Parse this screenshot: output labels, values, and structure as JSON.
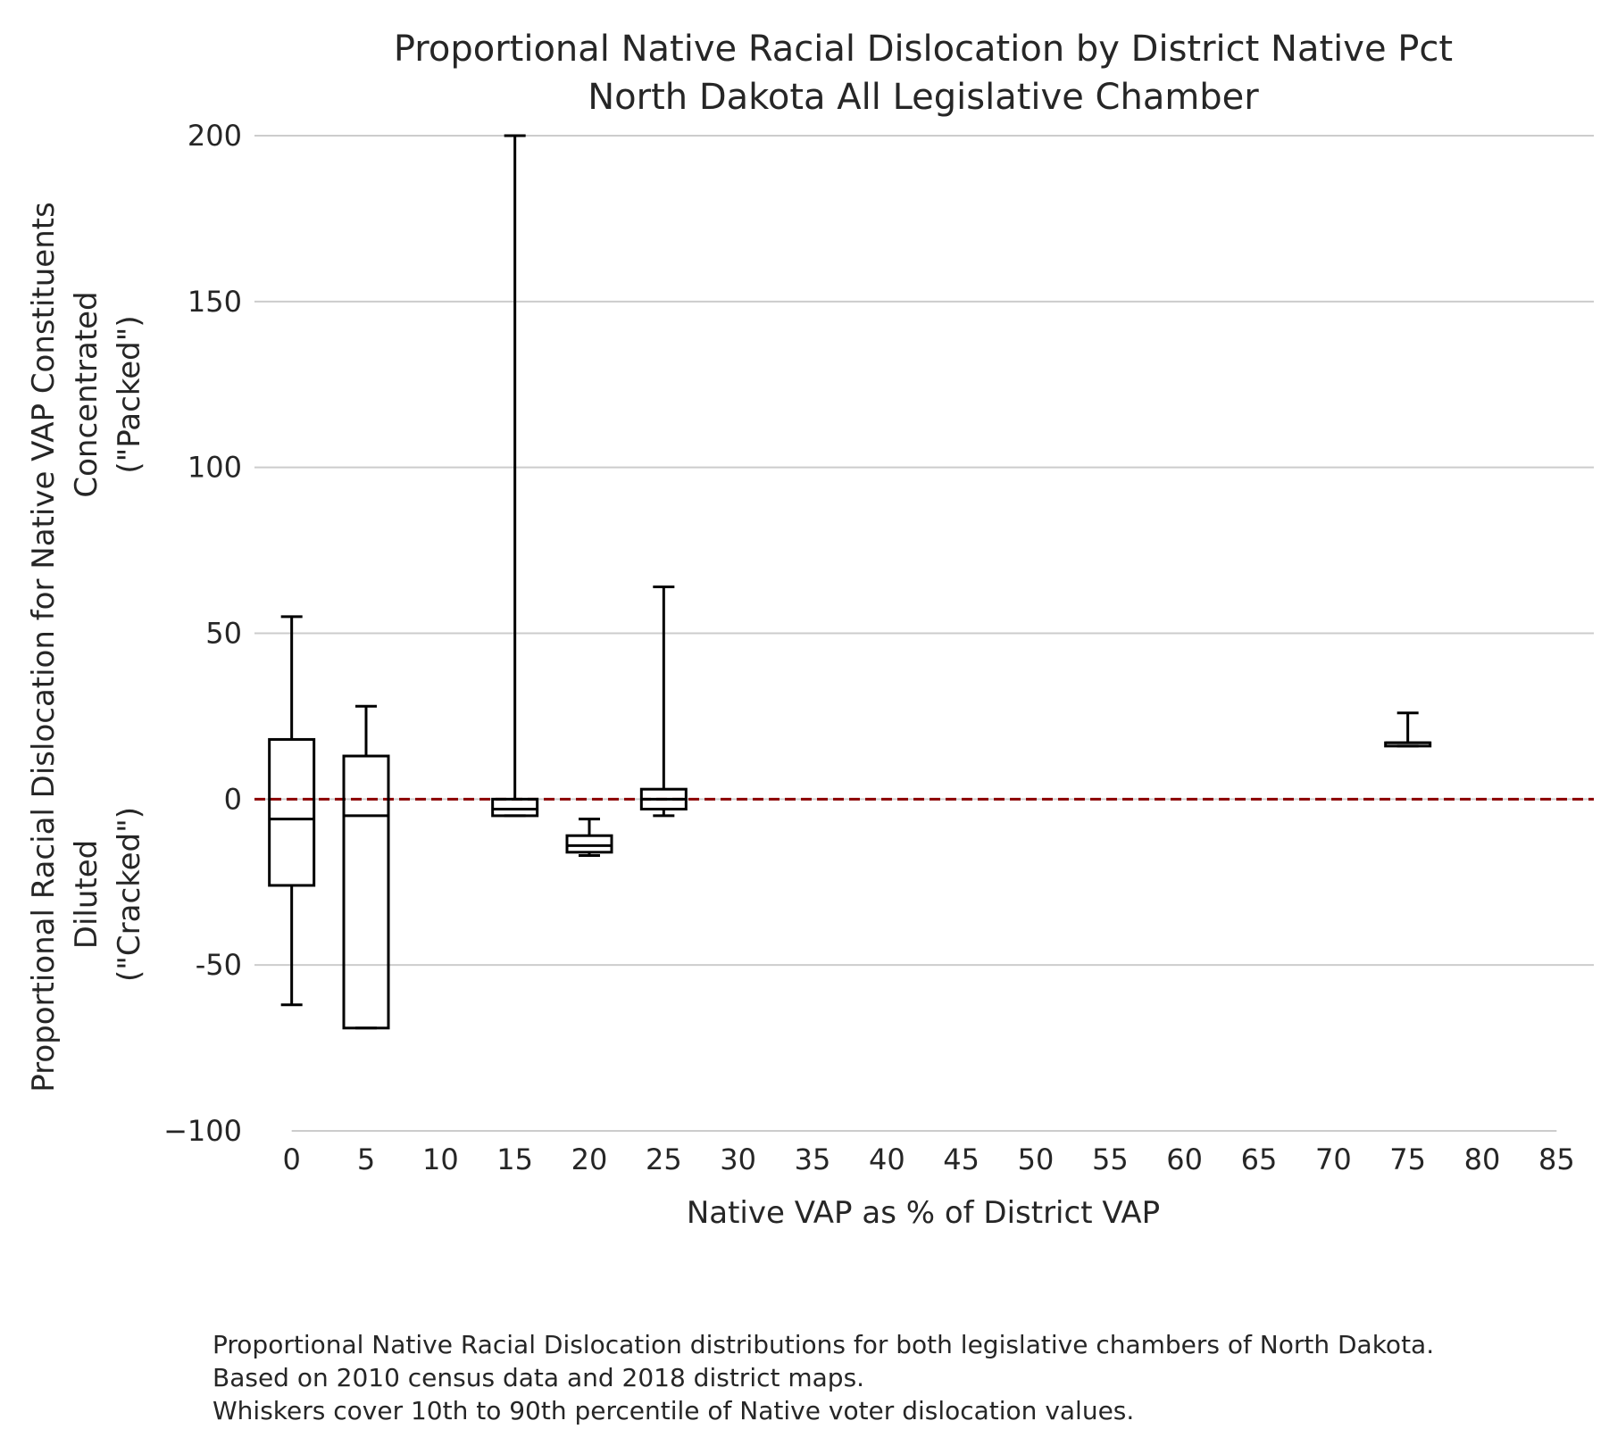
{
  "chart_data": {
    "type": "box",
    "title": "Proportional Native Racial Dislocation by District Native Pct",
    "subtitle": "North Dakota All Legislative Chamber",
    "xlabel": "Native VAP as % of District VAP",
    "ylabel_lines": [
      "Proportional Racial Dislocation for Native VAP Constituents",
      "Concentrated",
      "(\"Packed\")",
      "Diluted",
      "(\"Cracked\")"
    ],
    "x_ticks": [
      "0",
      "5",
      "10",
      "15",
      "20",
      "25",
      "30",
      "35",
      "40",
      "45",
      "50",
      "55",
      "60",
      "65",
      "70",
      "75",
      "80",
      "85"
    ],
    "y_ticks": [
      "200",
      "150",
      "100",
      "50",
      "0",
      "-50",
      "−100"
    ],
    "ylim": [
      -100,
      200
    ],
    "xlim": [
      -2.5,
      87.5
    ],
    "grid": "horizontal",
    "reference_line": {
      "y": 0,
      "color": "#8b0000",
      "style": "dashed"
    },
    "boxes": [
      {
        "x": 0,
        "whislo": -62,
        "q1": -26,
        "med": -6,
        "q3": 18,
        "whishi": 55
      },
      {
        "x": 5,
        "whislo": -69,
        "q1": -69,
        "med": -5,
        "q3": 13,
        "whishi": 28
      },
      {
        "x": 15,
        "whislo": -5,
        "q1": -5,
        "med": -3,
        "q3": 0,
        "whishi": 200
      },
      {
        "x": 20,
        "whislo": -17,
        "q1": -16,
        "med": -14,
        "q3": -11,
        "whishi": -6
      },
      {
        "x": 25,
        "whislo": -5,
        "q1": -3,
        "med": 0,
        "q3": 3,
        "whishi": 64
      },
      {
        "x": 75,
        "whislo": 16,
        "q1": 16,
        "med": 17,
        "q3": 17,
        "whishi": 26
      }
    ],
    "colors": {
      "box": "#000000",
      "grid": "#cccccc",
      "zero_line": "#8b0000"
    }
  },
  "caption": [
    "Proportional Native Racial Dislocation distributions for both legislative chambers of North Dakota.",
    "Based on 2010 census data and 2018 district maps.",
    "Whiskers cover 10th to 90th percentile of Native voter dislocation values."
  ]
}
